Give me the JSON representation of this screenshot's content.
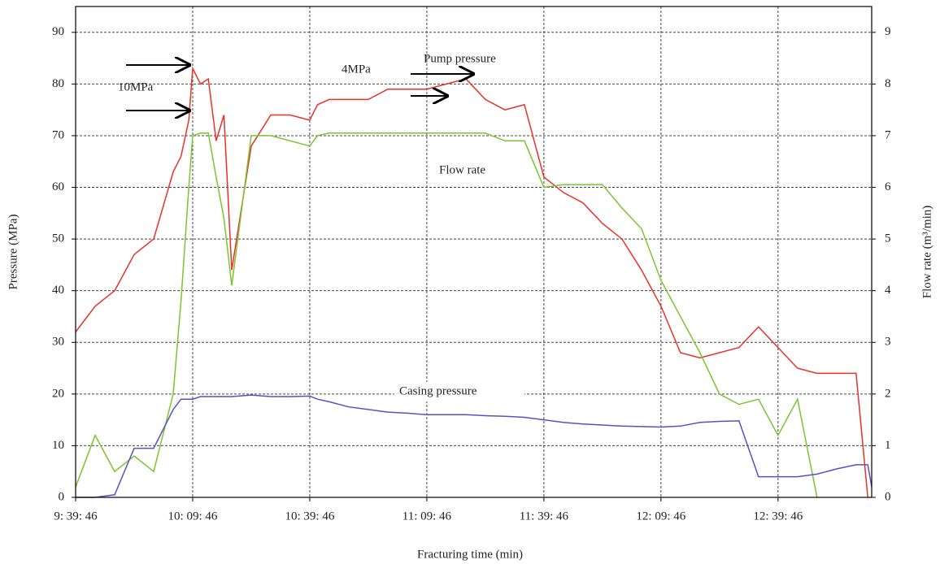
{
  "chart_data": {
    "type": "line",
    "x_label": "Fracturing time (min)",
    "y_label": "Pressure (MPa)",
    "y2_label": "Flow rate (m³/min)",
    "annotations": [
      "10MPa",
      "4MPa",
      "Pump pressure",
      "Flow rate",
      "Casing pressure"
    ],
    "grid": true,
    "xlim": [
      0,
      204
    ],
    "xticks": [
      {
        "value": 0,
        "label": "9: 39: 46"
      },
      {
        "value": 30,
        "label": "10: 09: 46"
      },
      {
        "value": 60,
        "label": "10: 39: 46"
      },
      {
        "value": 90,
        "label": "11: 09: 46"
      },
      {
        "value": 120,
        "label": "11: 39: 46"
      },
      {
        "value": 150,
        "label": "12: 09: 46"
      },
      {
        "value": 180,
        "label": "12: 39: 46"
      }
    ],
    "ylim": [
      0,
      95
    ],
    "yticks": [
      0,
      10,
      20,
      30,
      40,
      50,
      60,
      70,
      80,
      90
    ],
    "y2lim": [
      0,
      9.5
    ],
    "y2ticks": [
      0,
      1,
      2,
      3,
      4,
      5,
      6,
      7,
      8,
      9
    ],
    "x": [
      0,
      5,
      10,
      15,
      20,
      25,
      27,
      29,
      30,
      32,
      34,
      36,
      38,
      40,
      45,
      50,
      55,
      60,
      62,
      65,
      70,
      75,
      80,
      85,
      90,
      95,
      100,
      105,
      110,
      115,
      120,
      125,
      130,
      135,
      140,
      145,
      150,
      155,
      160,
      165,
      170,
      175,
      180,
      185,
      190,
      195,
      200,
      203,
      204
    ],
    "series": [
      {
        "name": "Pump pressure",
        "color": "#e8312a",
        "values": [
          32,
          37,
          40,
          47,
          50,
          63,
          66,
          73,
          83,
          80,
          81,
          69,
          74,
          44,
          68,
          74,
          74,
          73,
          76,
          77,
          77,
          77,
          79,
          79,
          79,
          80,
          81,
          77,
          75,
          76,
          62,
          59,
          57,
          53,
          50,
          44,
          37,
          28,
          27,
          28,
          29,
          33,
          29,
          25,
          24,
          24,
          24,
          0,
          null
        ]
      },
      {
        "name": "Flow rate",
        "color": "#7ac52e",
        "axis": "y2",
        "values": [
          0.2,
          1.2,
          0.5,
          0.8,
          0.5,
          2,
          3.8,
          6,
          7,
          7.05,
          7.05,
          6.2,
          5.4,
          4.1,
          7,
          7,
          6.9,
          6.8,
          7,
          7.05,
          7.05,
          7.05,
          7.05,
          7.05,
          7.05,
          7.05,
          7.05,
          7.05,
          6.9,
          6.9,
          6.0,
          6.05,
          6.05,
          6.05,
          5.6,
          5.2,
          4.2,
          3.5,
          2.8,
          2.0,
          1.8,
          1.9,
          1.2,
          1.9,
          0,
          null,
          null,
          null,
          null
        ]
      },
      {
        "name": "Casing pressure",
        "color": "#5a4fc4",
        "values": [
          0,
          0,
          0.5,
          9.5,
          9.5,
          17,
          19,
          19,
          19,
          19.5,
          19.5,
          19.5,
          19.5,
          19.5,
          19.8,
          19.5,
          19.5,
          19.6,
          19,
          18.5,
          17.5,
          17,
          16.5,
          16.3,
          16,
          16,
          16,
          15.8,
          15.7,
          15.5,
          15,
          14.5,
          14.2,
          14,
          13.8,
          13.7,
          13.6,
          13.8,
          14.5,
          14.7,
          14.8,
          4,
          4,
          4,
          4.5,
          5.5,
          6.3,
          6.3,
          2
        ]
      }
    ]
  }
}
